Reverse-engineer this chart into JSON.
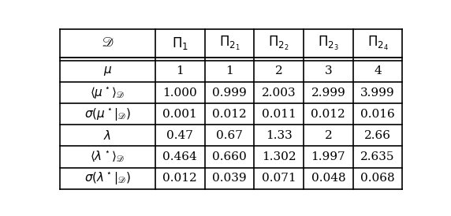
{
  "col_headers": [
    "$\\mathscr{D}$",
    "$\\Pi_1$",
    "$\\Pi_{2_1}$",
    "$\\Pi_{2_2}$",
    "$\\Pi_{2_3}$",
    "$\\Pi_{2_4}$"
  ],
  "rows": [
    [
      "$\\mu$",
      "1",
      "1",
      "2",
      "3",
      "4"
    ],
    [
      "$\\langle\\mu^\\star\\rangle_{\\mathscr{D}}$",
      "1.000",
      "0.999",
      "2.003",
      "2.999",
      "3.999"
    ],
    [
      "$\\sigma(\\mu^\\star|_{\\mathscr{D}})$",
      "0.001",
      "0.012",
      "0.011",
      "0.012",
      "0.016"
    ],
    [
      "$\\lambda$",
      "0.47",
      "0.67",
      "1.33",
      "2",
      "2.66"
    ],
    [
      "$\\langle\\lambda^\\star\\rangle_{\\mathscr{D}}$",
      "0.464",
      "0.660",
      "1.302",
      "1.997",
      "2.635"
    ],
    [
      "$\\sigma(\\lambda^\\star|_{\\mathscr{D}})$",
      "0.012",
      "0.039",
      "0.071",
      "0.048",
      "0.068"
    ]
  ],
  "header_bg": "#ffffff",
  "cell_bg": "#ffffff",
  "line_color": "#000000",
  "text_color": "#000000",
  "fontsize": 11,
  "header_fontsize": 12
}
